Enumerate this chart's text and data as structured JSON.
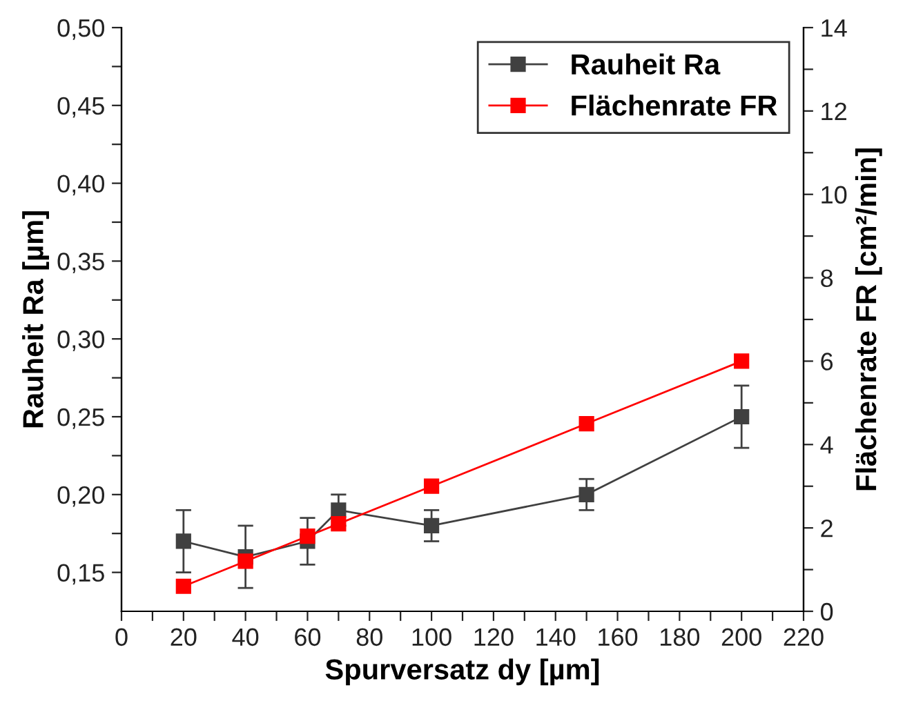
{
  "chart_data": {
    "type": "line",
    "xlabel": "Spurversatz dy [µm]",
    "ylabel": "Rauheit Ra [µm]",
    "y2label": "Flächenrate FR [cm²/min]",
    "x": [
      20,
      40,
      60,
      70,
      100,
      150,
      200
    ],
    "series": [
      {
        "name": "Rauheit Ra",
        "color": "#404040",
        "values": [
          0.17,
          0.16,
          0.17,
          0.19,
          0.18,
          0.2,
          0.25
        ],
        "errors": [
          0.02,
          0.02,
          0.015,
          0.01,
          0.01,
          0.01,
          0.02
        ]
      },
      {
        "name": "Flächenrate FR",
        "color": "#ff0000",
        "axis": "y2",
        "values": [
          0.6,
          1.2,
          1.8,
          2.1,
          3.0,
          4.5,
          6.0
        ]
      }
    ],
    "xlim": [
      0,
      220
    ],
    "xticks": [
      0,
      {
        "value": 10,
        "label": null
      },
      20,
      {
        "value": 30,
        "label": null
      },
      40,
      {
        "value": 50,
        "label": null
      },
      60,
      {
        "value": 70,
        "label": null
      },
      80,
      {
        "value": 90,
        "label": null
      },
      100,
      {
        "value": 110,
        "label": null
      },
      120,
      {
        "value": 130,
        "label": null
      },
      140,
      {
        "value": 150,
        "label": null
      },
      160,
      {
        "value": 170,
        "label": null
      },
      180,
      {
        "value": 190,
        "label": null
      },
      200,
      {
        "value": 210,
        "label": null
      },
      220
    ],
    "ylim": [
      0.125,
      0.5
    ],
    "yticks": [
      {
        "value": 0.15,
        "label": "0,15"
      },
      {
        "value": 0.175,
        "label": null
      },
      {
        "value": 0.2,
        "label": "0,20"
      },
      {
        "value": 0.225,
        "label": null
      },
      {
        "value": 0.25,
        "label": "0,25"
      },
      {
        "value": 0.275,
        "label": null
      },
      {
        "value": 0.3,
        "label": "0,30"
      },
      {
        "value": 0.325,
        "label": null
      },
      {
        "value": 0.35,
        "label": "0,35"
      },
      {
        "value": 0.375,
        "label": null
      },
      {
        "value": 0.4,
        "label": "0,40"
      },
      {
        "value": 0.425,
        "label": null
      },
      {
        "value": 0.45,
        "label": "0,45"
      },
      {
        "value": 0.475,
        "label": null
      },
      {
        "value": 0.5,
        "label": "0,50"
      }
    ],
    "y2lim": [
      0,
      14
    ],
    "y2ticks": [
      0,
      {
        "value": 1,
        "label": null
      },
      2,
      {
        "value": 3,
        "label": null
      },
      4,
      {
        "value": 5,
        "label": null
      },
      6,
      {
        "value": 7,
        "label": null
      },
      8,
      {
        "value": 9,
        "label": null
      },
      10,
      {
        "value": 11,
        "label": null
      },
      12,
      {
        "value": 13,
        "label": null
      },
      14
    ],
    "marker": "square",
    "line_style": "solid",
    "grid": false,
    "legend": "top right"
  }
}
